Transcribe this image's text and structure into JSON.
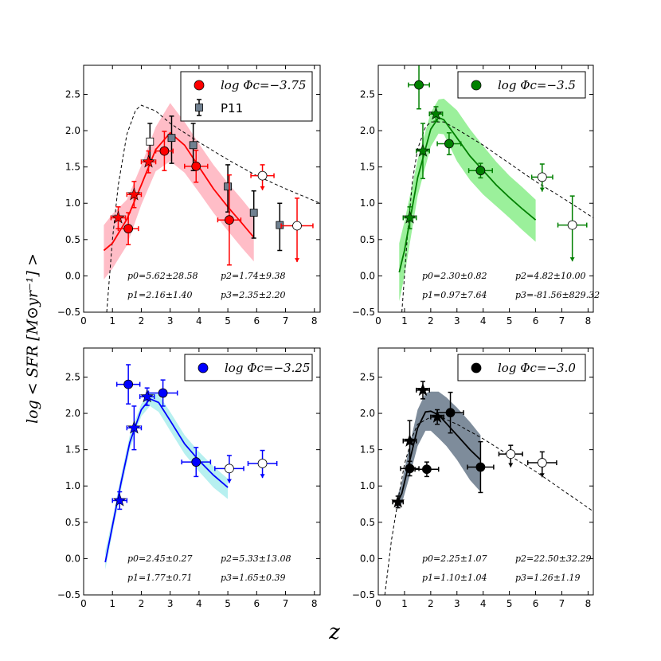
{
  "figure": {
    "xlabel": "z",
    "ylabel": "log < SFR [M⊙yr⁻¹] >"
  },
  "chart_data": [
    {
      "type": "scatter",
      "panel": "top-left",
      "color": "#ff0000",
      "band_color": "#ffb6c1",
      "legend": {
        "label": "log Φc=−3.75",
        "position": "top-right",
        "extra_label": "P11"
      },
      "xlim": [
        0,
        8.2
      ],
      "ylim": [
        -0.5,
        2.9
      ],
      "xticks": [
        "0",
        "1",
        "2",
        "3",
        "4",
        "5",
        "6",
        "7",
        "8"
      ],
      "yticks": [
        "−0.5",
        "0.0",
        "0.5",
        "1.0",
        "1.5",
        "2.0",
        "2.5"
      ],
      "params": [
        "p0=5.62±28.58",
        "p2=1.74±9.38",
        "p1=2.16±1.40",
        "p3=2.35±2.20"
      ],
      "stars": [
        {
          "x": 1.2,
          "y": 0.8,
          "xerr": 0.25,
          "yerr": 0.15
        },
        {
          "x": 1.75,
          "y": 1.12,
          "xerr": 0.25,
          "yerr": 0.18
        },
        {
          "x": 2.25,
          "y": 1.57,
          "xerr": 0.25,
          "yerr": 0.15
        }
      ],
      "circles": [
        {
          "x": 1.55,
          "y": 0.65,
          "xerr": 0.35,
          "yerr": 0.22
        },
        {
          "x": 2.8,
          "y": 1.72,
          "xerr": 0.3,
          "yerr": 0.27
        },
        {
          "x": 3.9,
          "y": 1.51,
          "xerr": 0.4,
          "yerr": 0.22
        },
        {
          "x": 5.05,
          "y": 0.77,
          "xerr": 0.4,
          "yerr": 0.62
        }
      ],
      "upper_limits": [
        {
          "x": 6.2,
          "y": 1.38,
          "xerr": 0.4,
          "yerr_up": 0.15,
          "drop": 0.2
        },
        {
          "x": 7.4,
          "y": 0.69,
          "xerr": 0.55,
          "yerr_up": 0.38,
          "drop": 0.5
        }
      ],
      "p11": [
        {
          "x": 2.3,
          "y": 1.85,
          "yerr_up": 0.25,
          "yerr_dn": 0.25,
          "open": true
        },
        {
          "x": 3.05,
          "y": 1.9,
          "yerr_up": 0.3,
          "yerr_dn": 0.35
        },
        {
          "x": 3.8,
          "y": 1.8,
          "yerr_up": 0.3,
          "yerr_dn": 0.35
        },
        {
          "x": 5.0,
          "y": 1.23,
          "yerr_up": 0.3,
          "yerr_dn": 0.35
        },
        {
          "x": 5.9,
          "y": 0.87,
          "yerr_up": 0.3,
          "yerr_dn": 0.35
        },
        {
          "x": 6.8,
          "y": 0.7,
          "yerr_up": 0.3,
          "yerr_dn": 0.35
        }
      ],
      "fit": {
        "x": [
          0.7,
          1.0,
          1.5,
          2.0,
          2.5,
          3.0,
          3.5,
          4.0,
          4.5,
          5.0,
          5.5,
          5.9
        ],
        "y": [
          0.35,
          0.45,
          0.78,
          1.25,
          1.74,
          1.97,
          1.8,
          1.5,
          1.2,
          0.95,
          0.72,
          0.53
        ]
      },
      "band_upper": [
        0.7,
        0.85,
        1.05,
        1.52,
        2.05,
        2.38,
        2.12,
        1.82,
        1.53,
        1.28,
        1.05,
        0.85
      ],
      "band_lower": [
        -0.05,
        0.1,
        0.42,
        0.98,
        1.44,
        1.58,
        1.42,
        1.15,
        0.87,
        0.62,
        0.38,
        0.2
      ],
      "model": {
        "x": [
          0.8,
          1.0,
          1.2,
          1.5,
          1.8,
          2.0,
          2.5,
          3.0,
          4.0,
          5.0,
          6.0,
          7.0,
          8.2
        ],
        "y": [
          -0.5,
          0.5,
          1.25,
          1.95,
          2.28,
          2.35,
          2.27,
          2.1,
          1.84,
          1.6,
          1.38,
          1.2,
          1.0
        ]
      }
    },
    {
      "type": "scatter",
      "panel": "top-right",
      "color": "#008000",
      "band_color": "#90ee90",
      "legend": {
        "label": "log Φc=−3.5",
        "position": "top-right"
      },
      "xlim": [
        0,
        8.2
      ],
      "ylim": [
        -0.5,
        2.9
      ],
      "xticks": [
        "0",
        "1",
        "2",
        "3",
        "4",
        "5",
        "6",
        "7",
        "8"
      ],
      "yticks": [
        "−0.5",
        "0.0",
        "0.5",
        "1.0",
        "1.5",
        "2.0",
        "2.5"
      ],
      "params": [
        "p0=2.30±0.82",
        "p2=4.82±10.00",
        "p1=0.97±7.64",
        "p3=-81.56±829.32"
      ],
      "stars": [
        {
          "x": 1.2,
          "y": 0.8,
          "xerr": 0.25,
          "yerr": 0.15
        },
        {
          "x": 1.7,
          "y": 1.72,
          "xerr": 0.25,
          "yerr": 0.38
        },
        {
          "x": 2.2,
          "y": 2.23,
          "xerr": 0.25,
          "yerr": 0.1
        }
      ],
      "circles": [
        {
          "x": 1.55,
          "y": 2.63,
          "xerr": 0.4,
          "yerr": 0.33
        },
        {
          "x": 2.7,
          "y": 1.82,
          "xerr": 0.45,
          "yerr": 0.15
        },
        {
          "x": 3.9,
          "y": 1.45,
          "xerr": 0.45,
          "yerr": 0.1
        }
      ],
      "upper_limits": [
        {
          "x": 6.25,
          "y": 1.36,
          "xerr": 0.4,
          "yerr_up": 0.18,
          "drop": 0.2
        },
        {
          "x": 7.4,
          "y": 0.7,
          "xerr": 0.55,
          "yerr_up": 0.4,
          "drop": 0.5
        }
      ],
      "fit": {
        "x": [
          0.8,
          1.0,
          1.5,
          2.0,
          2.3,
          2.5,
          3.0,
          3.5,
          4.0,
          4.5,
          5.0,
          5.5,
          6.0
        ],
        "y": [
          0.05,
          0.35,
          1.35,
          2.02,
          2.18,
          2.15,
          1.9,
          1.65,
          1.45,
          1.25,
          1.08,
          0.92,
          0.77
        ]
      },
      "band_upper": [
        0.45,
        0.75,
        1.6,
        2.25,
        2.43,
        2.44,
        2.28,
        2.02,
        1.79,
        1.57,
        1.38,
        1.22,
        1.05
      ],
      "band_lower": [
        -0.35,
        0.0,
        1.1,
        1.78,
        1.96,
        1.95,
        1.58,
        1.32,
        1.12,
        0.96,
        0.8,
        0.63,
        0.47
      ],
      "model": {
        "x": [
          0.9,
          1.1,
          1.3,
          1.5,
          1.8,
          2.0,
          2.5,
          3.0,
          4.0,
          5.0,
          6.0,
          7.0,
          8.2
        ],
        "y": [
          -0.5,
          0.5,
          1.3,
          1.75,
          2.05,
          2.12,
          2.12,
          2.02,
          1.8,
          1.55,
          1.3,
          1.08,
          0.8
        ]
      }
    },
    {
      "type": "scatter",
      "panel": "bottom-left",
      "color": "#0000ff",
      "band_color": "#afeeee",
      "legend": {
        "label": "log Φc=−3.25",
        "position": "top-right"
      },
      "xlim": [
        0,
        8.2
      ],
      "ylim": [
        -0.5,
        2.9
      ],
      "xticks": [
        "0",
        "1",
        "2",
        "3",
        "4",
        "5",
        "6",
        "7",
        "8"
      ],
      "yticks": [
        "−0.5",
        "0.0",
        "0.5",
        "1.0",
        "1.5",
        "2.0",
        "2.5"
      ],
      "params": [
        "p0=2.45±0.27",
        "p2=5.33±13.08",
        "p1=1.77±0.71",
        "p3=1.65±0.39"
      ],
      "stars": [
        {
          "x": 1.25,
          "y": 0.8,
          "xerr": 0.25,
          "yerr": 0.12
        },
        {
          "x": 1.75,
          "y": 1.8,
          "xerr": 0.25,
          "yerr": 0.3
        },
        {
          "x": 2.2,
          "y": 2.23,
          "xerr": 0.25,
          "yerr": 0.12
        }
      ],
      "circles": [
        {
          "x": 1.55,
          "y": 2.4,
          "xerr": 0.4,
          "yerr": 0.27
        },
        {
          "x": 2.75,
          "y": 2.28,
          "xerr": 0.5,
          "yerr": 0.18
        },
        {
          "x": 3.9,
          "y": 1.33,
          "xerr": 0.5,
          "yerr": 0.2
        }
      ],
      "upper_limits": [
        {
          "x": 5.05,
          "y": 1.24,
          "xerr": 0.5,
          "yerr_up": 0.18,
          "drop": 0.2
        },
        {
          "x": 6.2,
          "y": 1.31,
          "xerr": 0.5,
          "yerr_up": 0.18,
          "drop": 0.2
        }
      ],
      "fit": {
        "x": [
          0.75,
          1.0,
          1.3,
          1.6,
          2.0,
          2.3,
          2.6,
          3.0,
          3.5,
          4.0,
          4.5,
          5.0
        ],
        "y": [
          -0.05,
          0.45,
          1.05,
          1.6,
          2.05,
          2.2,
          2.15,
          1.9,
          1.58,
          1.35,
          1.15,
          0.98
        ]
      },
      "band_upper": [
        0.1,
        0.55,
        1.15,
        1.7,
        2.13,
        2.28,
        2.26,
        2.02,
        1.7,
        1.47,
        1.27,
        1.1
      ],
      "band_lower": [
        -0.15,
        0.35,
        0.95,
        1.5,
        1.96,
        2.1,
        2.02,
        1.76,
        1.44,
        1.2,
        0.98,
        0.82
      ]
    },
    {
      "type": "scatter",
      "panel": "bottom-right",
      "color": "#000000",
      "band_color": "#708090",
      "legend": {
        "label": "log Φc=−3.0",
        "position": "top-right"
      },
      "xlim": [
        0,
        8.2
      ],
      "ylim": [
        -0.5,
        2.9
      ],
      "xticks": [
        "0",
        "1",
        "2",
        "3",
        "4",
        "5",
        "6",
        "7",
        "8"
      ],
      "yticks": [
        "−0.5",
        "0.0",
        "0.5",
        "1.0",
        "1.5",
        "2.0",
        "2.5"
      ],
      "params": [
        "p0=2.25±1.07",
        "p2=22.50±32.29",
        "p1=1.10±1.04",
        "p3=1.26±1.19"
      ],
      "stars": [
        {
          "x": 0.75,
          "y": 0.78,
          "xerr": 0.2,
          "yerr": 0.08
        },
        {
          "x": 1.2,
          "y": 1.62,
          "xerr": 0.25,
          "yerr": 0.28
        },
        {
          "x": 1.7,
          "y": 2.32,
          "xerr": 0.25,
          "yerr": 0.12
        },
        {
          "x": 2.25,
          "y": 1.95,
          "xerr": 0.25,
          "yerr": 0.1
        }
      ],
      "circles": [
        {
          "x": 1.2,
          "y": 1.24,
          "xerr": 0.35,
          "yerr": 0.1
        },
        {
          "x": 1.85,
          "y": 1.23,
          "xerr": 0.45,
          "yerr": 0.1
        },
        {
          "x": 2.75,
          "y": 2.01,
          "xerr": 0.5,
          "yerr": 0.28
        },
        {
          "x": 3.9,
          "y": 1.26,
          "xerr": 0.5,
          "yerr": 0.35
        }
      ],
      "upper_limits": [
        {
          "x": 5.05,
          "y": 1.44,
          "xerr": 0.45,
          "yerr_up": 0.12,
          "drop": 0.18
        },
        {
          "x": 6.25,
          "y": 1.32,
          "xerr": 0.55,
          "yerr_up": 0.15,
          "drop": 0.2
        }
      ],
      "fit": {
        "x": [
          0.7,
          0.9,
          1.2,
          1.5,
          1.8,
          2.0,
          2.3,
          2.6,
          3.0,
          3.5,
          3.9
        ],
        "y": [
          0.75,
          0.9,
          1.35,
          1.8,
          2.02,
          2.03,
          1.98,
          1.86,
          1.7,
          1.5,
          1.36
        ]
      },
      "band_upper": [
        0.83,
        1.05,
        1.57,
        2.05,
        2.28,
        2.3,
        2.3,
        2.22,
        2.08,
        1.88,
        1.7
      ],
      "band_lower": [
        0.67,
        0.76,
        1.14,
        1.55,
        1.76,
        1.76,
        1.66,
        1.55,
        1.36,
        1.08,
        0.92
      ],
      "model": {
        "x": [
          0.25,
          0.5,
          0.8,
          1.0,
          1.3,
          1.5,
          2.0,
          2.5,
          3.0,
          4.0,
          5.0,
          6.0,
          7.0,
          8.2
        ],
        "y": [
          -0.5,
          0.25,
          0.9,
          1.3,
          1.68,
          1.85,
          1.95,
          1.93,
          1.85,
          1.65,
          1.42,
          1.2,
          0.95,
          0.65
        ]
      }
    }
  ]
}
